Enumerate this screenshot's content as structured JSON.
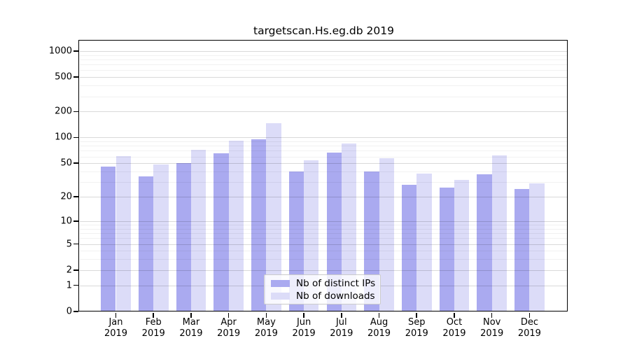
{
  "title": "targetscan.Hs.eg.db 2019",
  "chart_data": {
    "type": "bar",
    "title": "targetscan.Hs.eg.db 2019",
    "categories": [
      "Jan 2019",
      "Feb 2019",
      "Mar 2019",
      "Apr 2019",
      "May 2019",
      "Jun 2019",
      "Jul 2019",
      "Aug 2019",
      "Sep 2019",
      "Oct 2019",
      "Nov 2019",
      "Dec 2019"
    ],
    "x_tick_months": [
      "Jan",
      "Feb",
      "Mar",
      "Apr",
      "May",
      "Jun",
      "Jul",
      "Aug",
      "Sep",
      "Oct",
      "Nov",
      "Dec"
    ],
    "x_tick_year": "2019",
    "series": [
      {
        "name": "Nb of distinct IPs",
        "slug": "distinct-ips",
        "color": "#aaaaf0",
        "values": [
          46,
          35,
          50,
          65,
          96,
          40,
          67,
          40,
          28,
          26,
          37,
          25
        ]
      },
      {
        "name": "Nb of downloads",
        "slug": "downloads",
        "color": "#dcdcf8",
        "values": [
          61,
          48,
          72,
          92,
          146,
          54,
          85,
          57,
          38,
          32,
          62,
          29
        ]
      }
    ],
    "yscale": "log10(value+1)",
    "y_ticks": [
      0,
      1,
      2,
      5,
      10,
      20,
      50,
      100,
      200,
      500,
      1000
    ],
    "y_minor_gridlines": [
      3,
      4,
      6,
      7,
      8,
      9,
      30,
      40,
      60,
      70,
      80,
      90,
      300,
      400,
      600,
      700,
      800,
      900
    ],
    "ylim": [
      0,
      1300
    ],
    "grid": true,
    "legend_position": "lower center inside"
  },
  "colors": {
    "distinct_ips_bar": "#aaaaf0",
    "downloads_bar": "#dcdcf8",
    "major_gridline": "#d9d9d9",
    "minor_gridline": "#efefef",
    "spine": "#000000",
    "background": "#ffffff"
  }
}
